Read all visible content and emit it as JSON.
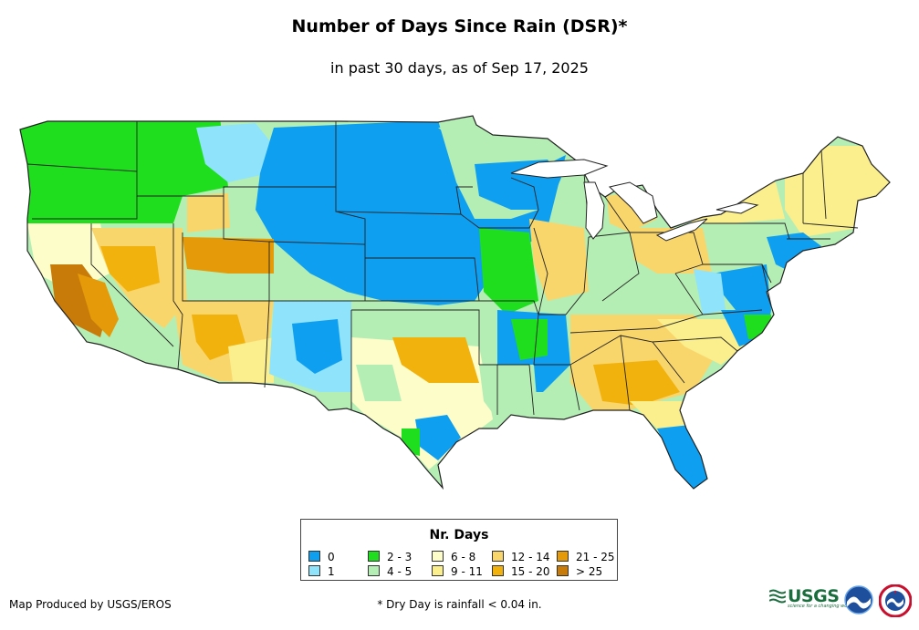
{
  "header": {
    "title": "Number of Days Since Rain (DSR)*",
    "subtitle": "in past 30 days, as of Sep 17, 2025"
  },
  "colors": {
    "c0": "#0f9ff0",
    "c1": "#8fe3fb",
    "c2_3": "#1ede1e",
    "c4_5": "#b5eeb4",
    "c6_8": "#fdfdc9",
    "c9_11": "#fbee8c",
    "c12_14": "#f9d66b",
    "c15_20": "#f2b20d",
    "c21_25": "#e49a09",
    "c25p": "#c97b0a"
  },
  "legend": {
    "title": "Nr. Days",
    "items": [
      {
        "label": "0",
        "color": "#0f9ff0"
      },
      {
        "label": "1",
        "color": "#8fe3fb"
      },
      {
        "label": "2 - 3",
        "color": "#1ede1e"
      },
      {
        "label": "4 - 5",
        "color": "#b5eeb4"
      },
      {
        "label": "6 - 8",
        "color": "#fdfdc9"
      },
      {
        "label": "9 - 11",
        "color": "#fbee8c"
      },
      {
        "label": "12 - 14",
        "color": "#f9d66b"
      },
      {
        "label": "15 - 20",
        "color": "#f2b20d"
      },
      {
        "label": "21 - 25",
        "color": "#e49a09"
      },
      {
        "label": "> 25",
        "color": "#c97b0a"
      }
    ]
  },
  "footer": {
    "credit": "Map Produced by USGS/EROS",
    "footnote": "* Dry Day is rainfall < 0.04 in."
  },
  "logos": {
    "usgs": "USGS",
    "usgs_tagline": "science for a changing world",
    "noaa": "noaa-logo",
    "nws": "nws-logo"
  }
}
